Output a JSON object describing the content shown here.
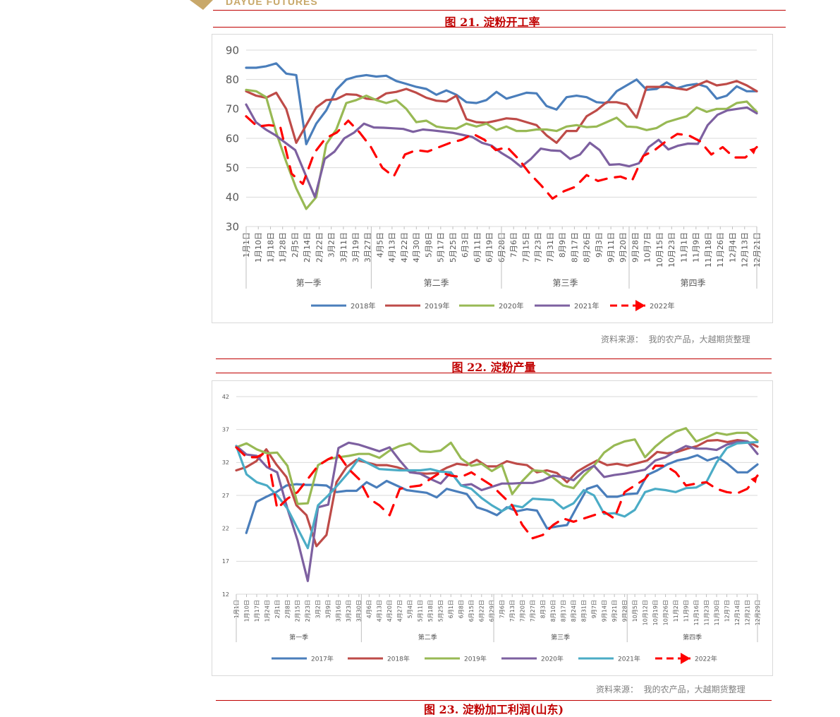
{
  "header": {
    "logo_text": "DAYUE FUTURES"
  },
  "figures": [
    {
      "title": "图 21. 淀粉开工率",
      "source": "资料来源：  我的农产品，大越期货整理",
      "chart_data": {
        "type": "line",
        "ylim": [
          30,
          90
        ],
        "yticks": [
          30,
          40,
          50,
          60,
          70,
          80,
          90
        ],
        "grid": true,
        "legend_position": "bottom",
        "tick_labels": [
          "1月1日",
          "1月10日",
          "1月18日",
          "1月28日",
          "2月5日",
          "2月14日",
          "2月22日",
          "3月2日",
          "3月11日",
          "3月19日",
          "3月27日",
          "4月5日",
          "4月13日",
          "4月22日",
          "4月30日",
          "5月8日",
          "5月17日",
          "5月25日",
          "6月3日",
          "6月11日",
          "6月19日",
          "6月28日",
          "7月6日",
          "7月15日",
          "7月23日",
          "7月31日",
          "8月9日",
          "8月17日",
          "8月26日",
          "9月3日",
          "9月11日",
          "9月20日",
          "9月28日",
          "10月7日",
          "10月15日",
          "10月23日",
          "11月1日",
          "11月9日",
          "11月18日",
          "11月26日",
          "12月4日",
          "12月13日",
          "12月21日"
        ],
        "quarters": [
          "第一季",
          "第二季",
          "第三季",
          "第四季"
        ],
        "series": [
          {
            "name": "2018年",
            "color": "#4a7ebb",
            "dashed": false,
            "values": [
              84,
              84,
              84.5,
              85.5,
              82,
              81.5,
              58,
              65,
              69.5,
              76.5,
              80,
              81,
              81.5,
              81,
              81.3,
              79.5,
              78.5,
              77.5,
              76.8,
              74.8,
              76.3,
              74.8,
              72.3,
              72,
              73,
              75.8,
              73.5,
              74.5,
              75.5,
              75.3,
              71,
              69.8,
              74,
              74.5,
              74,
              72.3,
              72,
              76,
              78,
              80,
              76.5,
              76.8,
              79,
              77,
              78,
              78.5,
              77.5,
              73.5,
              74.5,
              77.7,
              76,
              76
            ]
          },
          {
            "name": "2019年",
            "color": "#be4b48",
            "dashed": false,
            "values": [
              76,
              74.5,
              73.8,
              75.5,
              70,
              58.5,
              64.5,
              70.5,
              73,
              73.3,
              75,
              74.8,
              73.5,
              73.2,
              75.3,
              75.8,
              76.8,
              75.5,
              73.8,
              72.8,
              72.5,
              74.5,
              66.5,
              65.5,
              65.3,
              66,
              66.8,
              66.5,
              65.5,
              64.5,
              61,
              58.5,
              62.5,
              62.5,
              67.5,
              69.5,
              72.3,
              72.3,
              71.5,
              67,
              77.5,
              77.5,
              77.5,
              77,
              76.5,
              78,
              79.5,
              78,
              78.5,
              79.5,
              78,
              76
            ]
          },
          {
            "name": "2020年",
            "color": "#98b954",
            "dashed": false,
            "values": [
              76.5,
              76,
              74,
              62,
              52,
              43,
              36,
              40,
              58,
              63,
              72,
              73,
              74.5,
              73,
              72,
              73,
              70,
              65.5,
              66,
              64,
              63.5,
              63.3,
              65,
              64,
              65,
              62.8,
              64,
              62.5,
              62.5,
              63,
              63,
              62.5,
              64,
              64.5,
              63.8,
              64,
              65.5,
              67,
              64,
              63.8,
              62.8,
              63.5,
              65.5,
              66.5,
              67.5,
              70.5,
              69,
              70,
              70,
              72,
              72.5,
              69
            ]
          },
          {
            "name": "2021年",
            "color": "#7d60a0",
            "dashed": false,
            "values": [
              71.5,
              65.5,
              63,
              61,
              58.5,
              56,
              48,
              40,
              53,
              55.5,
              60,
              62,
              65,
              63.7,
              63.6,
              63.4,
              63.2,
              62.2,
              63,
              62.7,
              62.3,
              61.9,
              61.2,
              60.5,
              58.5,
              57.5,
              55,
              53,
              50.3,
              53,
              56.5,
              55.9,
              55.7,
              53,
              54.5,
              58.5,
              56,
              51,
              51.2,
              50.5,
              51.5,
              57,
              59.5,
              56.2,
              57.5,
              58.2,
              58.1,
              64.5,
              68,
              69.5,
              70,
              70.5,
              68.5
            ]
          },
          {
            "name": "2022年",
            "color": "#ff0000",
            "dashed": true,
            "values": [
              67.5,
              64,
              64.5,
              64,
              48,
              44.5,
              55,
              60,
              62,
              66,
              62,
              57,
              50,
              47,
              54.5,
              56,
              55.5,
              57,
              58.5,
              59.5,
              61.5,
              59.5,
              56,
              57,
              53,
              48,
              44,
              39.5,
              42,
              43.5,
              47.5,
              45.5,
              46.5,
              47,
              45.5,
              54,
              56,
              59,
              61.5,
              61,
              59,
              54.5,
              57,
              53.5,
              53.5,
              57
            ]
          }
        ]
      }
    },
    {
      "title": "图 22.  淀粉产量",
      "source": "资料来源：  我的农产品，大越期货整理",
      "chart_data": {
        "type": "line",
        "ylim": [
          12,
          42
        ],
        "yticks": [
          12,
          17,
          22,
          27,
          32,
          37,
          42
        ],
        "grid": true,
        "legend_position": "bottom",
        "tick_labels": [
          "1月1日",
          "1月10日",
          "1月17日",
          "1月24日",
          "2月1日",
          "2月8日",
          "2月15日",
          "2月23日",
          "3月2日",
          "3月9日",
          "3月16日",
          "3月23日",
          "3月30日",
          "4月6日",
          "4月13日",
          "4月20日",
          "4月27日",
          "5月4日",
          "5月11日",
          "5月18日",
          "5月25日",
          "6月1日",
          "6月8日",
          "6月15日",
          "6月22日",
          "6月29日",
          "7月6日",
          "7月13日",
          "7月20日",
          "7月27日",
          "8月3日",
          "8月10日",
          "8月17日",
          "8月24日",
          "8月31日",
          "9月7日",
          "9月14日",
          "9月21日",
          "9月28日",
          "10月5日",
          "10月12日",
          "10月19日",
          "10月26日",
          "11月2日",
          "11月9日",
          "11月16日",
          "11月23日",
          "11月30日",
          "12月7日",
          "12月14日",
          "12月21日",
          "12月29日"
        ],
        "quarters": [
          "第一季",
          "第二季",
          "第三季",
          "第四季"
        ],
        "series": [
          {
            "name": "2017年",
            "color": "#4a7ebb",
            "dashed": false,
            "values": [
              null,
              21.3,
              26,
              26.8,
              27.5,
              28.5,
              28.7,
              28.6,
              28.6,
              28.5,
              27.5,
              27.7,
              27.7,
              29,
              28.2,
              29.2,
              28.5,
              27.8,
              27.6,
              27.4,
              26.7,
              28,
              27.6,
              27.2,
              25.2,
              24.7,
              24,
              25.2,
              24.6,
              24.9,
              24.7,
              22,
              22.3,
              22.5,
              25.3,
              28,
              28.5,
              26.8,
              26.8,
              27.2,
              27.3,
              30.1,
              30.8,
              31.7,
              32.3,
              32.6,
              33.1,
              32.3,
              32.8,
              31.8,
              30.5,
              30.5,
              31.7
            ]
          },
          {
            "name": "2018年",
            "color": "#be4b48",
            "dashed": false,
            "values": [
              30.8,
              31.3,
              32.2,
              34,
              31.7,
              29.8,
              25.5,
              24,
              19.3,
              21,
              29,
              31.3,
              32.4,
              32,
              31.6,
              31.6,
              31.3,
              30.8,
              30.4,
              30.3,
              30.4,
              31.2,
              31.8,
              31.6,
              32.4,
              31.4,
              31.4,
              32.2,
              31.8,
              31.6,
              30.5,
              30.8,
              30.4,
              29,
              30.6,
              31.5,
              32.3,
              31.6,
              31.8,
              31.5,
              31.9,
              32.3,
              33.6,
              33.4,
              33.6,
              34.1,
              34.5,
              35.3,
              35.4,
              35.1,
              35.4,
              35.2,
              34.4
            ]
          },
          {
            "name": "2019年",
            "color": "#98b954",
            "dashed": false,
            "values": [
              34.3,
              34.9,
              34,
              33.4,
              33.5,
              31.5,
              25.7,
              25.8,
              31.6,
              32.5,
              32.8,
              33,
              33.3,
              33.3,
              32.7,
              33.8,
              34.5,
              34.9,
              33.7,
              33.6,
              33.8,
              35,
              32.6,
              31.5,
              31.8,
              30.7,
              31.6,
              27.2,
              29.2,
              30.8,
              30.7,
              29.7,
              28.5,
              28.1,
              30,
              31.5,
              33.5,
              34.6,
              35.2,
              35.5,
              32.8,
              34.4,
              35.7,
              36.7,
              37.2,
              35.2,
              35.8,
              36.5,
              36.2,
              36.5,
              36.5,
              35.3
            ]
          },
          {
            "name": "2020年",
            "color": "#7d60a0",
            "dashed": false,
            "values": [
              34.5,
              33.2,
              33,
              31.3,
              30.5,
              25,
              20.2,
              14,
              25.2,
              25.6,
              34.2,
              35,
              34.7,
              34.2,
              33.7,
              34.3,
              32.3,
              30.5,
              30.3,
              29.5,
              28.8,
              30.5,
              28.5,
              28.7,
              27.8,
              28.3,
              28.8,
              28.8,
              28.9,
              28.9,
              29.3,
              30,
              29.8,
              29.3,
              30.7,
              31.5,
              29.8,
              30.1,
              30.3,
              30.6,
              30.9,
              32.3,
              32.8,
              33.7,
              34.5,
              34.1,
              34.1,
              33.9,
              34.7,
              35.1,
              35.2,
              33.3
            ]
          },
          {
            "name": "2021年",
            "color": "#4bacc6",
            "dashed": false,
            "values": [
              34.5,
              30.2,
              29,
              28.5,
              27,
              25,
              22,
              19,
              25.5,
              27,
              28.7,
              30.5,
              32.6,
              31.8,
              31,
              30.9,
              30.8,
              30.8,
              30.8,
              31,
              30.6,
              30.5,
              28.5,
              28,
              26.6,
              25.5,
              24.6,
              25.5,
              25.2,
              26.5,
              26.4,
              26.3,
              25,
              25.8,
              27.8,
              27,
              24.2,
              24.3,
              23.8,
              24.8,
              27.5,
              28,
              27.8,
              27.5,
              28.1,
              28.2,
              29,
              32,
              34.2,
              34.9,
              35,
              35.1
            ]
          },
          {
            "name": "2022年",
            "color": "#ff0000",
            "dashed": true,
            "values": [
              34.3,
              32.8,
              32.8,
              33.6,
              25,
              26.5,
              27.5,
              29.5,
              31.5,
              32.5,
              33.2,
              31,
              29.5,
              26.5,
              25.5,
              24,
              28,
              28.3,
              28.5,
              29.5,
              30.5,
              30,
              29.8,
              30.5,
              29.5,
              28.5,
              27,
              25.5,
              22.5,
              20.5,
              21,
              22.5,
              23.5,
              23,
              23.5,
              24,
              24.5,
              23.5,
              27.5,
              28.5,
              29.5,
              31.5,
              31.5,
              30.5,
              28.5,
              28.8,
              29,
              28,
              27.5,
              27.3,
              28,
              30
            ]
          }
        ]
      }
    }
  ],
  "next_title": "图 23.  淀粉加工利润(山东)"
}
